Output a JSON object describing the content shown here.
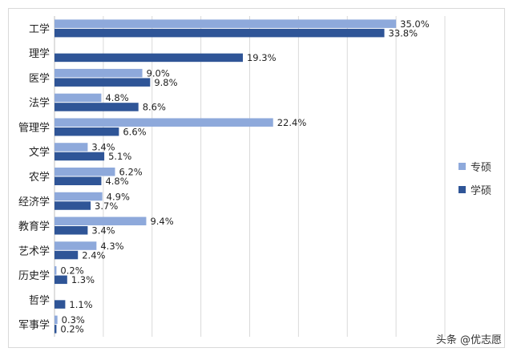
{
  "chart_data": {
    "type": "bar",
    "orientation": "horizontal",
    "categories": [
      "工学",
      "理学",
      "医学",
      "法学",
      "管理学",
      "文学",
      "农学",
      "经济学",
      "教育学",
      "艺术学",
      "历史学",
      "哲学",
      "军事学"
    ],
    "series": [
      {
        "name": "专硕",
        "color": "#8EA9DB",
        "values": [
          35.0,
          null,
          9.0,
          4.8,
          22.4,
          3.4,
          6.2,
          4.9,
          9.4,
          4.3,
          0.2,
          null,
          0.3
        ]
      },
      {
        "name": "学硕",
        "color": "#2F5597",
        "values": [
          33.8,
          19.3,
          9.8,
          8.6,
          6.6,
          5.1,
          4.8,
          3.7,
          3.4,
          2.4,
          1.3,
          1.1,
          0.2
        ]
      }
    ],
    "value_suffix": "%",
    "xlim": [
      0,
      40
    ],
    "grid": true,
    "legend": "right"
  },
  "legend": [
    {
      "label": "专硕",
      "color": "#8EA9DB"
    },
    {
      "label": "学硕",
      "color": "#2F5597"
    }
  ],
  "watermark": "头条 @优志愿"
}
